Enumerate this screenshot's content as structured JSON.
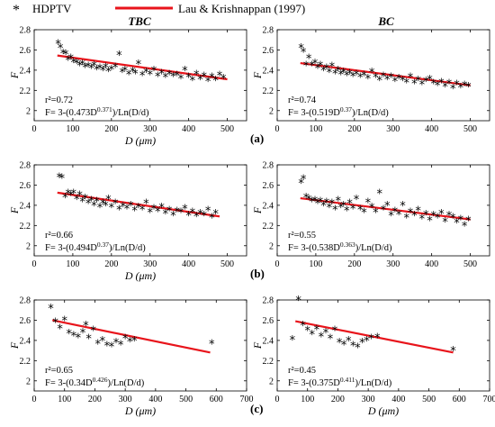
{
  "legend": {
    "position": "top",
    "marker_label": "HDPTV",
    "line_label": "Lau & Krishnappan (1997)",
    "marker_symbol": "*",
    "line_color": "#e8141b"
  },
  "colors": {
    "points": "#000000",
    "fit_line": "#e8141b",
    "axes": "#000000"
  },
  "columns": [
    "TBC",
    "BC"
  ],
  "row_labels": [
    "(a)",
    "(b)",
    "(c)"
  ],
  "axis_labels": {
    "x_label": "D (μm)",
    "y_label": "F"
  },
  "chart_data": [
    {
      "type": "scatter",
      "title": "TBC",
      "row": "a",
      "xlim": [
        0,
        550
      ],
      "ylim": [
        1.9,
        2.8
      ],
      "xticks": [
        0,
        100,
        200,
        300,
        400,
        500
      ],
      "yticks": [
        2,
        2.2,
        2.4,
        2.6,
        2.8
      ],
      "xlabel": "D (μm)",
      "ylabel": "F",
      "annotation_r2": "r²=0.72",
      "annotation_eq": "F= 3-(0.473D^0.371)/Ln(D/d)",
      "fit_line": {
        "x": [
          60,
          500
        ],
        "y": [
          2.545,
          2.31
        ]
      },
      "points": {
        "x": [
          62,
          68,
          75,
          82,
          88,
          95,
          102,
          110,
          118,
          125,
          132,
          140,
          148,
          155,
          162,
          170,
          178,
          185,
          192,
          200,
          210,
          220,
          228,
          235,
          245,
          255,
          262,
          270,
          280,
          290,
          300,
          310,
          320,
          330,
          340,
          350,
          360,
          370,
          380,
          390,
          400,
          410,
          420,
          430,
          440,
          450,
          460,
          470,
          480,
          490
        ],
        "y": [
          2.66,
          2.62,
          2.57,
          2.56,
          2.5,
          2.52,
          2.48,
          2.47,
          2.45,
          2.46,
          2.43,
          2.44,
          2.42,
          2.45,
          2.41,
          2.42,
          2.4,
          2.43,
          2.39,
          2.41,
          2.43,
          2.55,
          2.38,
          2.4,
          2.36,
          2.39,
          2.37,
          2.46,
          2.35,
          2.38,
          2.36,
          2.4,
          2.34,
          2.37,
          2.33,
          2.36,
          2.34,
          2.35,
          2.32,
          2.4,
          2.33,
          2.3,
          2.36,
          2.31,
          2.34,
          2.29,
          2.33,
          2.3,
          2.35,
          2.32
        ]
      }
    },
    {
      "type": "scatter",
      "title": "BC",
      "row": "a",
      "xlim": [
        0,
        550
      ],
      "ylim": [
        1.9,
        2.8
      ],
      "xticks": [
        0,
        100,
        200,
        300,
        400,
        500
      ],
      "yticks": [
        2,
        2.2,
        2.4,
        2.6,
        2.8
      ],
      "xlabel": "",
      "ylabel": "F",
      "annotation_r2": "r²=0.74",
      "annotation_eq": "F= 3-(0.519D^0.37)/Ln(D/d)",
      "fit_line": {
        "x": [
          60,
          500
        ],
        "y": [
          2.47,
          2.25
        ]
      },
      "points": {
        "x": [
          62,
          68,
          75,
          82,
          90,
          98,
          105,
          112,
          120,
          128,
          135,
          142,
          150,
          158,
          165,
          172,
          180,
          188,
          196,
          205,
          215,
          225,
          235,
          245,
          255,
          265,
          275,
          285,
          295,
          305,
          315,
          325,
          335,
          345,
          355,
          365,
          375,
          385,
          395,
          405,
          415,
          425,
          435,
          445,
          455,
          465,
          475,
          485,
          495
        ],
        "y": [
          2.62,
          2.58,
          2.45,
          2.52,
          2.45,
          2.47,
          2.42,
          2.45,
          2.4,
          2.42,
          2.38,
          2.44,
          2.37,
          2.4,
          2.36,
          2.38,
          2.35,
          2.37,
          2.34,
          2.36,
          2.33,
          2.35,
          2.32,
          2.38,
          2.33,
          2.3,
          2.34,
          2.31,
          2.33,
          2.29,
          2.32,
          2.3,
          2.28,
          2.33,
          2.27,
          2.3,
          2.26,
          2.29,
          2.31,
          2.27,
          2.25,
          2.28,
          2.24,
          2.27,
          2.22,
          2.26,
          2.23,
          2.25,
          2.24
        ]
      }
    },
    {
      "type": "scatter",
      "title": "",
      "row": "b",
      "xlim": [
        0,
        550
      ],
      "ylim": [
        1.9,
        2.8
      ],
      "xticks": [
        0,
        100,
        200,
        300,
        400,
        500
      ],
      "yticks": [
        2,
        2.2,
        2.4,
        2.6,
        2.8
      ],
      "xlabel": "D (μm)",
      "ylabel": "F",
      "annotation_r2": "r²=0.66",
      "annotation_eq": "F= 3-(0.494D^0.37)/Ln(D/d)",
      "fit_line": {
        "x": [
          60,
          480
        ],
        "y": [
          2.525,
          2.29
        ]
      },
      "points": {
        "x": [
          65,
          72,
          80,
          88,
          95,
          102,
          110,
          118,
          125,
          132,
          140,
          148,
          155,
          162,
          170,
          178,
          185,
          192,
          200,
          210,
          220,
          230,
          240,
          250,
          260,
          270,
          280,
          290,
          300,
          310,
          320,
          330,
          340,
          350,
          360,
          370,
          380,
          390,
          400,
          410,
          420,
          430,
          440,
          450,
          460,
          470
        ],
        "y": [
          2.68,
          2.67,
          2.48,
          2.52,
          2.5,
          2.52,
          2.46,
          2.5,
          2.44,
          2.47,
          2.42,
          2.45,
          2.4,
          2.44,
          2.38,
          2.42,
          2.4,
          2.46,
          2.38,
          2.42,
          2.36,
          2.39,
          2.37,
          2.4,
          2.35,
          2.38,
          2.36,
          2.42,
          2.33,
          2.37,
          2.34,
          2.38,
          2.32,
          2.35,
          2.3,
          2.34,
          2.33,
          2.37,
          2.3,
          2.33,
          2.29,
          2.32,
          2.3,
          2.35,
          2.28,
          2.32
        ]
      }
    },
    {
      "type": "scatter",
      "title": "",
      "row": "b",
      "xlim": [
        0,
        550
      ],
      "ylim": [
        1.9,
        2.8
      ],
      "xticks": [
        0,
        100,
        200,
        300,
        400,
        500
      ],
      "yticks": [
        2,
        2.2,
        2.4,
        2.6,
        2.8
      ],
      "xlabel": "",
      "ylabel": "F",
      "annotation_r2": "r²=0.55",
      "annotation_eq": "F= 3-(0.538D^0.363)/Ln(D/d)",
      "fit_line": {
        "x": [
          60,
          500
        ],
        "y": [
          2.47,
          2.26
        ]
      },
      "points": {
        "x": [
          62,
          68,
          75,
          82,
          90,
          98,
          105,
          112,
          120,
          128,
          135,
          142,
          150,
          158,
          165,
          172,
          180,
          188,
          196,
          205,
          215,
          225,
          235,
          245,
          255,
          265,
          275,
          285,
          295,
          305,
          315,
          325,
          335,
          345,
          355,
          365,
          375,
          385,
          395,
          405,
          415,
          425,
          435,
          445,
          455,
          465,
          475,
          485,
          495
        ],
        "y": [
          2.62,
          2.66,
          2.48,
          2.46,
          2.44,
          2.45,
          2.42,
          2.44,
          2.4,
          2.43,
          2.38,
          2.42,
          2.36,
          2.45,
          2.38,
          2.4,
          2.35,
          2.42,
          2.37,
          2.46,
          2.36,
          2.33,
          2.43,
          2.38,
          2.33,
          2.52,
          2.36,
          2.4,
          2.3,
          2.34,
          2.31,
          2.4,
          2.28,
          2.33,
          2.3,
          2.35,
          2.27,
          2.31,
          2.25,
          2.3,
          2.28,
          2.32,
          2.24,
          2.3,
          2.28,
          2.23,
          2.26,
          2.2,
          2.25
        ]
      }
    },
    {
      "type": "scatter",
      "title": "",
      "row": "c",
      "xlim": [
        0,
        700
      ],
      "ylim": [
        1.9,
        2.8
      ],
      "xticks": [
        0,
        100,
        200,
        300,
        400,
        500,
        600,
        700
      ],
      "yticks": [
        2,
        2.2,
        2.4,
        2.6,
        2.8
      ],
      "xlabel": "D (μm)",
      "ylabel": "F",
      "annotation_r2": "r²=0.65",
      "annotation_eq": "F= 3-(0.34D^0.426)/Ln(D/d)",
      "fit_line": {
        "x": [
          60,
          580
        ],
        "y": [
          2.6,
          2.28
        ]
      },
      "points": {
        "x": [
          55,
          70,
          85,
          100,
          115,
          130,
          145,
          160,
          170,
          180,
          195,
          210,
          225,
          240,
          255,
          270,
          285,
          300,
          315,
          330,
          585
        ],
        "y": [
          2.72,
          2.58,
          2.52,
          2.6,
          2.47,
          2.45,
          2.43,
          2.48,
          2.55,
          2.42,
          2.5,
          2.37,
          2.4,
          2.35,
          2.34,
          2.38,
          2.36,
          2.42,
          2.39,
          2.4,
          2.37
        ]
      }
    },
    {
      "type": "scatter",
      "title": "",
      "row": "c",
      "xlim": [
        0,
        700
      ],
      "ylim": [
        1.9,
        2.8
      ],
      "xticks": [
        0,
        100,
        200,
        300,
        400,
        500,
        600,
        700
      ],
      "yticks": [
        2,
        2.2,
        2.4,
        2.6,
        2.8
      ],
      "xlabel": "D (μm)",
      "ylabel": "F",
      "annotation_r2": "r²=0.45",
      "annotation_eq": "F= 3-(0.375D^0.411)/Ln(D/d)",
      "fit_line": {
        "x": [
          60,
          580
        ],
        "y": [
          2.59,
          2.28
        ]
      },
      "points": {
        "x": [
          50,
          70,
          85,
          100,
          115,
          130,
          145,
          160,
          175,
          190,
          205,
          220,
          235,
          250,
          265,
          280,
          295,
          310,
          330,
          580
        ],
        "y": [
          2.41,
          2.8,
          2.55,
          2.5,
          2.46,
          2.51,
          2.44,
          2.48,
          2.42,
          2.5,
          2.38,
          2.36,
          2.4,
          2.35,
          2.33,
          2.38,
          2.4,
          2.42,
          2.43,
          2.3
        ]
      }
    }
  ]
}
